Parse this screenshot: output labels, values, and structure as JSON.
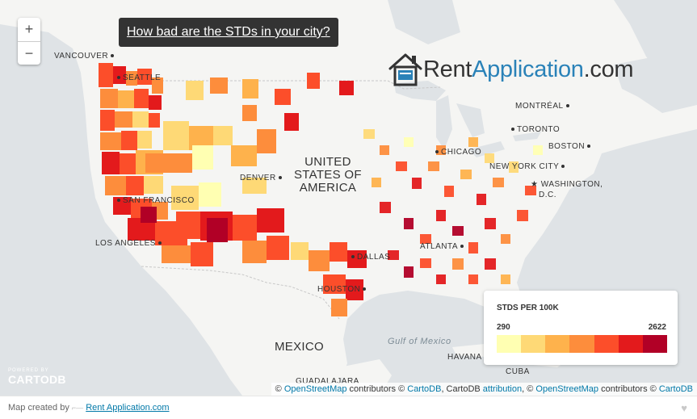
{
  "header": {
    "title": "How bad are the STDs in your city?"
  },
  "zoom": {
    "in_label": "+",
    "out_label": "−"
  },
  "brand": {
    "name_dark": "Rent",
    "name_blue": "Application",
    "name_suffix": ".com"
  },
  "map_labels": {
    "vancouver": "VANCOUVER",
    "seattle": "SEATTLE",
    "san_francisco": "SAN FRANCISCO",
    "los_angeles": "LOS ANGELES",
    "denver": "DENVER",
    "dallas": "DALLAS",
    "houston": "HOUSTON",
    "atlanta": "ATLANTA",
    "chicago": "CHICAGO",
    "toronto": "TORONTO",
    "montreal": "MONTRÉAL",
    "boston": "BOSTON",
    "new_york": "NEW YORK CITY",
    "washington_1": "WASHINGTON,",
    "washington_2": "D.C.",
    "havana": "HAVANA",
    "cuba": "CUBA",
    "guadalajara": "GUADALAJARA",
    "usa_1": "UNITED",
    "usa_2": "STATES OF",
    "usa_3": "AMERICA",
    "mexico": "MEXICO",
    "gulf": "Gulf of Mexico"
  },
  "legend": {
    "title": "STDS PER 100K",
    "min": "290",
    "max": "2622",
    "colors": [
      "#ffffb2",
      "#fed976",
      "#feb24c",
      "#fd8d3c",
      "#fc4e2a",
      "#e31a1c",
      "#b10026"
    ]
  },
  "cartodb": {
    "powered": "POWERED BY",
    "name": "CARTODB"
  },
  "attribution": {
    "prefix": "©",
    "osm1": "OpenStreetMap",
    "t1": "contributors ©",
    "carto1": "CartoDB",
    "t2": ", CartoDB",
    "attr_link": "attribution",
    "t3": ", ©",
    "osm2": "OpenStreetMap",
    "t4": "contributors ©",
    "carto2": "CartoDB"
  },
  "footer": {
    "created_by": "Map created by",
    "link": "Rent Application.com"
  },
  "colors": {
    "water": "#dfe3e6",
    "land": "#f5f5f3",
    "link": "#0078a8"
  }
}
